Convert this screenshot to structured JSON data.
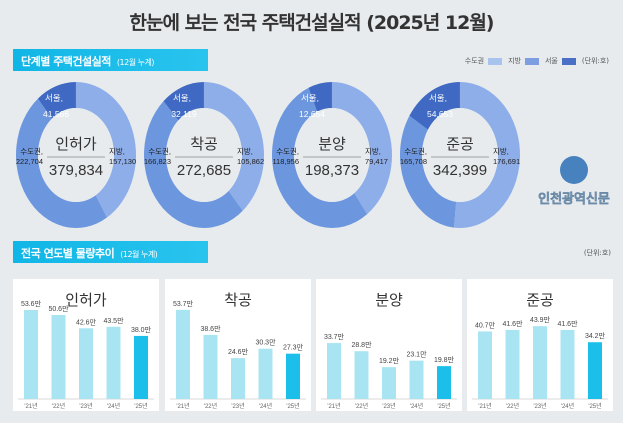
{
  "title": "한눈에 보는 전국 주택건설실적 (2025년 12월)",
  "section1": {
    "label": "단계별 주택건설실적",
    "note": "(12월 누계)"
  },
  "legend": [
    {
      "label": "수도권",
      "color": "#a9c3ef"
    },
    {
      "label": "지방",
      "color": "#7d9fe2"
    },
    {
      "label": "서울",
      "color": "#4a70c6"
    }
  ],
  "unit": "(단위:호)",
  "section2": {
    "label": "전국 연도별 물량추이",
    "note": "(12월 누계)"
  },
  "colors": {
    "jibang": "#8eaeea",
    "sudo": "#6c97df",
    "seoul": "#3f69c2",
    "bar": "#a8e4f2",
    "bar_current": "#1bbfea"
  },
  "chart_data": [
    {
      "type": "pie",
      "title": "인허가",
      "total": "379,834",
      "slices": [
        {
          "name": "지방",
          "label": "지방,",
          "value": 157130,
          "text": "157,130"
        },
        {
          "name": "수도권",
          "label": "수도권,",
          "value": 222704,
          "text": "222,704"
        },
        {
          "name": "서울",
          "label": "서울,",
          "value": 41566,
          "text": "41,566",
          "part_of": "수도권"
        }
      ]
    },
    {
      "type": "pie",
      "title": "착공",
      "total": "272,685",
      "slices": [
        {
          "name": "지방",
          "label": "지방,",
          "value": 105862,
          "text": "105,862"
        },
        {
          "name": "수도권",
          "label": "수도권,",
          "value": 166823,
          "text": "166,823"
        },
        {
          "name": "서울",
          "label": "서울,",
          "value": 32119,
          "text": "32,119",
          "part_of": "수도권"
        }
      ]
    },
    {
      "type": "pie",
      "title": "분양",
      "total": "198,373",
      "slices": [
        {
          "name": "지방",
          "label": "지방,",
          "value": 79417,
          "text": "79,417"
        },
        {
          "name": "수도권",
          "label": "수도권,",
          "value": 118956,
          "text": "118,956"
        },
        {
          "name": "서울",
          "label": "서울,",
          "value": 12654,
          "text": "12,654",
          "part_of": "수도권"
        }
      ]
    },
    {
      "type": "pie",
      "title": "준공",
      "total": "342,399",
      "slices": [
        {
          "name": "지방",
          "label": "지방,",
          "value": 176691,
          "text": "176,691"
        },
        {
          "name": "수도권",
          "label": "수도권,",
          "value": 165708,
          "text": "165,708"
        },
        {
          "name": "서울",
          "label": "서울,",
          "value": 54653,
          "text": "54,653",
          "part_of": "수도권"
        }
      ]
    },
    {
      "type": "bar",
      "title": "인허가",
      "categories": [
        "'21년",
        "'22년",
        "'23년",
        "'24년",
        "'25년"
      ],
      "values": [
        53.6,
        50.6,
        42.6,
        43.5,
        38.0
      ],
      "labels": [
        "53.6만",
        "50.6만",
        "42.6만",
        "43.5만",
        "38.0만"
      ]
    },
    {
      "type": "bar",
      "title": "착공",
      "categories": [
        "'21년",
        "'22년",
        "'23년",
        "'24년",
        "'25년"
      ],
      "values": [
        53.7,
        38.6,
        24.6,
        30.3,
        27.3
      ],
      "labels": [
        "53.7만",
        "38.6만",
        "24.6만",
        "30.3만",
        "27.3만"
      ]
    },
    {
      "type": "bar",
      "title": "분양",
      "categories": [
        "'21년",
        "'22년",
        "'23년",
        "'24년",
        "'25년"
      ],
      "values": [
        33.7,
        28.8,
        19.2,
        23.1,
        19.8
      ],
      "labels": [
        "33.7만",
        "28.8만",
        "19.2만",
        "23.1만",
        "19.8만"
      ]
    },
    {
      "type": "bar",
      "title": "준공",
      "categories": [
        "'21년",
        "'22년",
        "'23년",
        "'24년",
        "'25년"
      ],
      "values": [
        40.7,
        41.6,
        43.9,
        41.6,
        34.2
      ],
      "labels": [
        "40.7만",
        "41.6만",
        "43.9만",
        "41.6만",
        "34.2만"
      ]
    }
  ],
  "watermark": "인천광역신문"
}
